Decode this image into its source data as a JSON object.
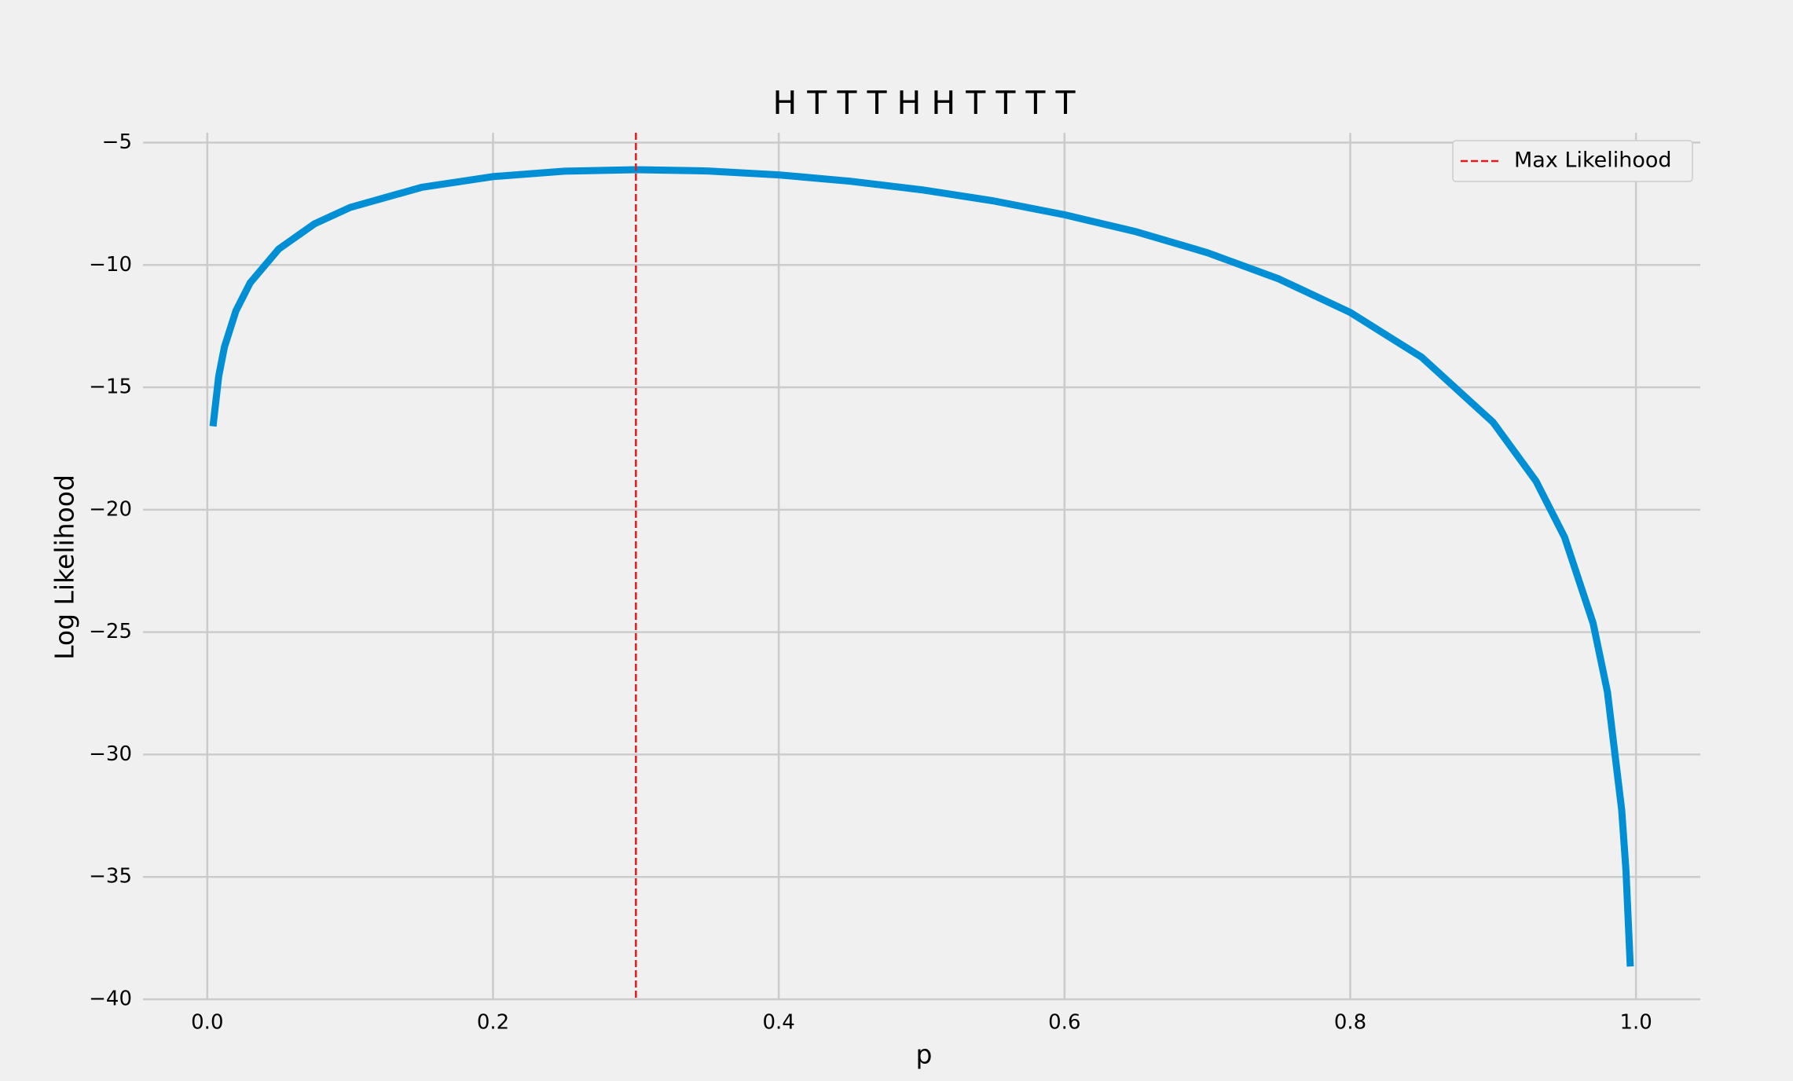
{
  "chart_data": {
    "type": "line",
    "title": "H T T T H H T T T T",
    "x_label": "p",
    "y_label": "Log Likelihood",
    "x": [
      0.004,
      0.008,
      0.012,
      0.02,
      0.03,
      0.05,
      0.075,
      0.1,
      0.15,
      0.2,
      0.25,
      0.3,
      0.35,
      0.4,
      0.45,
      0.5,
      0.55,
      0.6,
      0.65,
      0.7,
      0.75,
      0.8,
      0.85,
      0.9,
      0.93,
      0.95,
      0.97,
      0.98,
      0.99,
      0.993,
      0.996
    ],
    "series": [
      {
        "color": "#008fd5",
        "values": [
          -16.59,
          -14.54,
          -13.35,
          -11.88,
          -10.73,
          -9.35,
          -8.32,
          -7.65,
          -6.83,
          -6.39,
          -6.17,
          -6.11,
          -6.16,
          -6.32,
          -6.58,
          -6.93,
          -7.38,
          -7.95,
          -8.64,
          -9.5,
          -10.57,
          -11.94,
          -13.77,
          -16.43,
          -18.83,
          -21.12,
          -24.64,
          -27.44,
          -32.27,
          -34.75,
          -38.66
        ]
      }
    ],
    "vlines": [
      {
        "name": "Max Likelihood",
        "x": 0.3,
        "color": "#e41a1c"
      }
    ],
    "xlim": [
      -0.045,
      1.045
    ],
    "ylim": [
      -40,
      -4.6
    ],
    "xticks": [
      {
        "value": 0,
        "label": "0.0"
      },
      0.2,
      0.4,
      0.6,
      0.8,
      {
        "value": 1,
        "label": "1.0"
      }
    ],
    "yticks": [
      {
        "value": -40,
        "label": "−40"
      },
      {
        "value": -35,
        "label": "−35"
      },
      {
        "value": -30,
        "label": "−30"
      },
      {
        "value": -25,
        "label": "−25"
      },
      {
        "value": -20,
        "label": "−20"
      },
      {
        "value": -15,
        "label": "−15"
      },
      {
        "value": -10,
        "label": "−10"
      },
      {
        "value": -5,
        "label": "−5"
      }
    ],
    "grid": true,
    "legend": "upper right"
  }
}
